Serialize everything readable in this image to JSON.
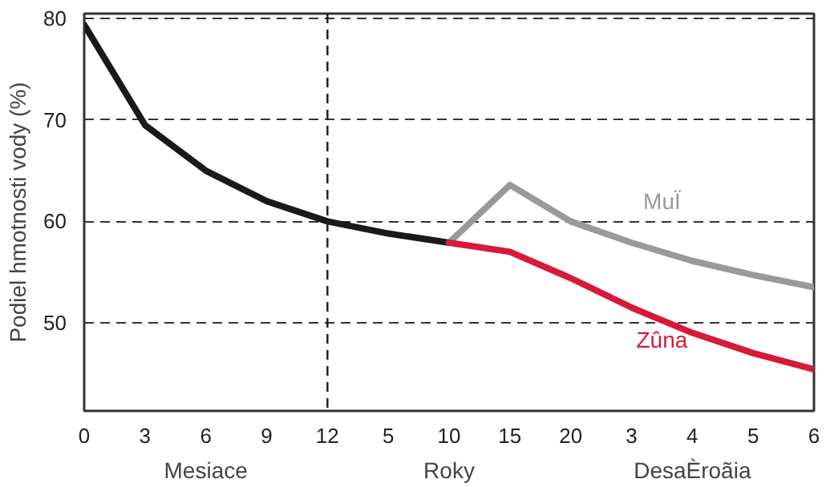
{
  "chart_data": {
    "type": "line",
    "ylabel": "Podiel hmotnosti vody (%)",
    "annotations": [
      "Mesiace",
      "Roky",
      "DesaÈroãia"
    ],
    "categories": [
      "0",
      "3",
      "6",
      "9",
      "12",
      "5",
      "10",
      "15",
      "20",
      "3",
      "4",
      "5",
      "6"
    ],
    "series": [
      {
        "color": "#1a1a1a",
        "values": [
          79.4,
          69.5,
          65,
          62,
          60,
          58.8,
          57.9,
          null,
          null,
          null,
          null,
          null,
          null
        ]
      },
      {
        "name": "MuÏ",
        "color": "#999999",
        "values": [
          null,
          null,
          null,
          null,
          null,
          null,
          57.9,
          63.6,
          60,
          57.9,
          56.1,
          54.7,
          53.5
        ]
      },
      {
        "name": "Zûna",
        "color": "#d7193a",
        "values": [
          null,
          null,
          null,
          null,
          null,
          null,
          57.9,
          57.0,
          54.4,
          51.5,
          49.0,
          47.0,
          45.4
        ]
      }
    ],
    "ylim": [
      41.3,
      80.5
    ],
    "yticks": [
      50,
      60,
      70,
      80
    ],
    "ref_lines": [
      {
        "axis": "x",
        "value": "12",
        "color": "#1a1a1a",
        "line_style": "dashed"
      }
    ],
    "grid": "y",
    "marker": "none",
    "line_style": "solid"
  }
}
